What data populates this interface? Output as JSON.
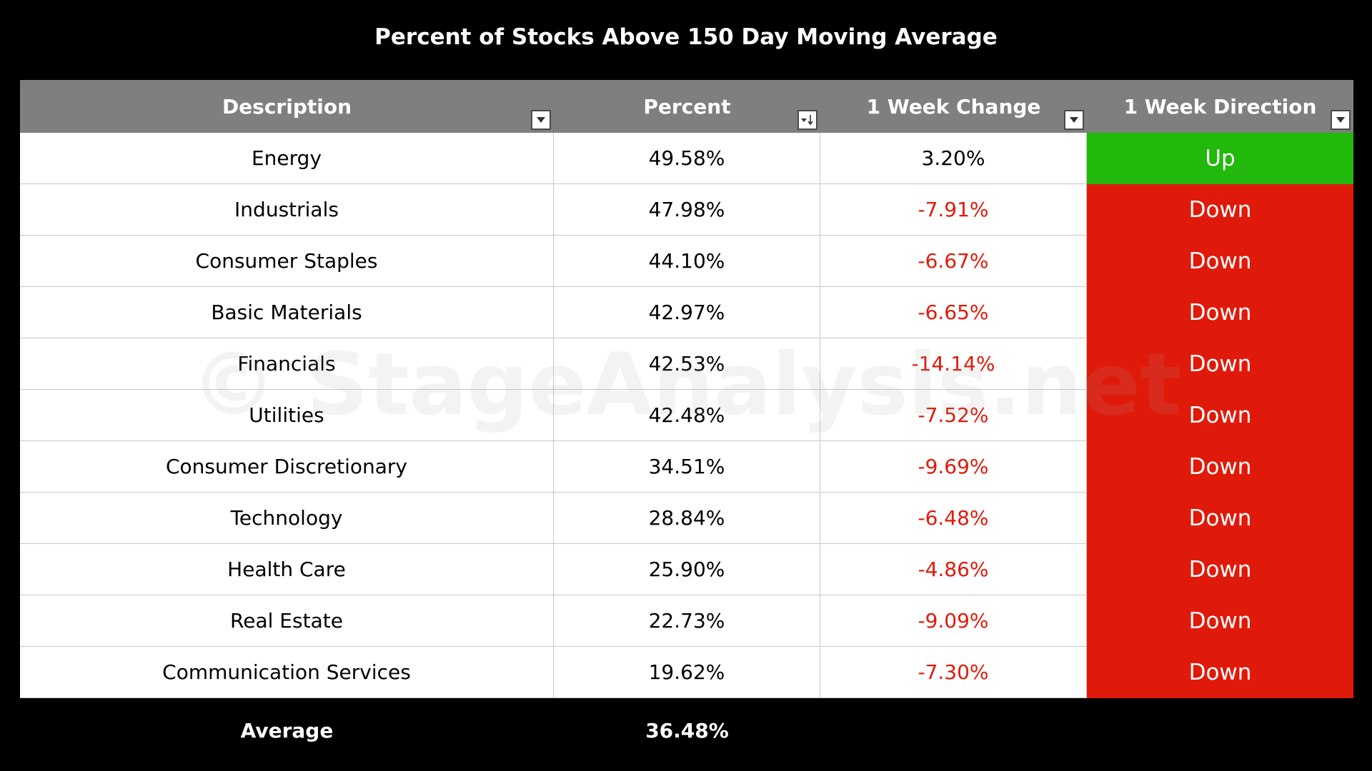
{
  "chart_data": {
    "type": "table",
    "title": "Percent of Stocks Above 150 Day Moving Average",
    "columns": [
      "Description",
      "Percent",
      "1 Week Change",
      "1 Week Direction"
    ],
    "rows": [
      {
        "description": "Energy",
        "percent": "49.58%",
        "change": "3.20%",
        "direction": "Up"
      },
      {
        "description": "Industrials",
        "percent": "47.98%",
        "change": "-7.91%",
        "direction": "Down"
      },
      {
        "description": "Consumer Staples",
        "percent": "44.10%",
        "change": "-6.67%",
        "direction": "Down"
      },
      {
        "description": "Basic Materials",
        "percent": "42.97%",
        "change": "-6.65%",
        "direction": "Down"
      },
      {
        "description": "Financials",
        "percent": "42.53%",
        "change": "-14.14%",
        "direction": "Down"
      },
      {
        "description": "Utilities",
        "percent": "42.48%",
        "change": "-7.52%",
        "direction": "Down"
      },
      {
        "description": "Consumer Discretionary",
        "percent": "34.51%",
        "change": "-9.69%",
        "direction": "Down"
      },
      {
        "description": "Technology",
        "percent": "28.84%",
        "change": "-6.48%",
        "direction": "Down"
      },
      {
        "description": "Health Care",
        "percent": "25.90%",
        "change": "-4.86%",
        "direction": "Down"
      },
      {
        "description": "Real Estate",
        "percent": "22.73%",
        "change": "-9.09%",
        "direction": "Down"
      },
      {
        "description": "Communication Services",
        "percent": "19.62%",
        "change": "-7.30%",
        "direction": "Down"
      }
    ],
    "average_label": "Average",
    "average_value": "36.48%",
    "sort": "Percent descending"
  },
  "watermark": "© StageAnalysis.net",
  "colors": {
    "background": "#000000",
    "header": "#7f7f7f",
    "up": "#22b80c",
    "down": "#e01a0a",
    "negative_text": "#e01a0a",
    "positive_text": "#000000"
  },
  "icons": {
    "filter": "filter-dropdown-icon",
    "sorted_filter": "sort-descending-filter-icon"
  }
}
